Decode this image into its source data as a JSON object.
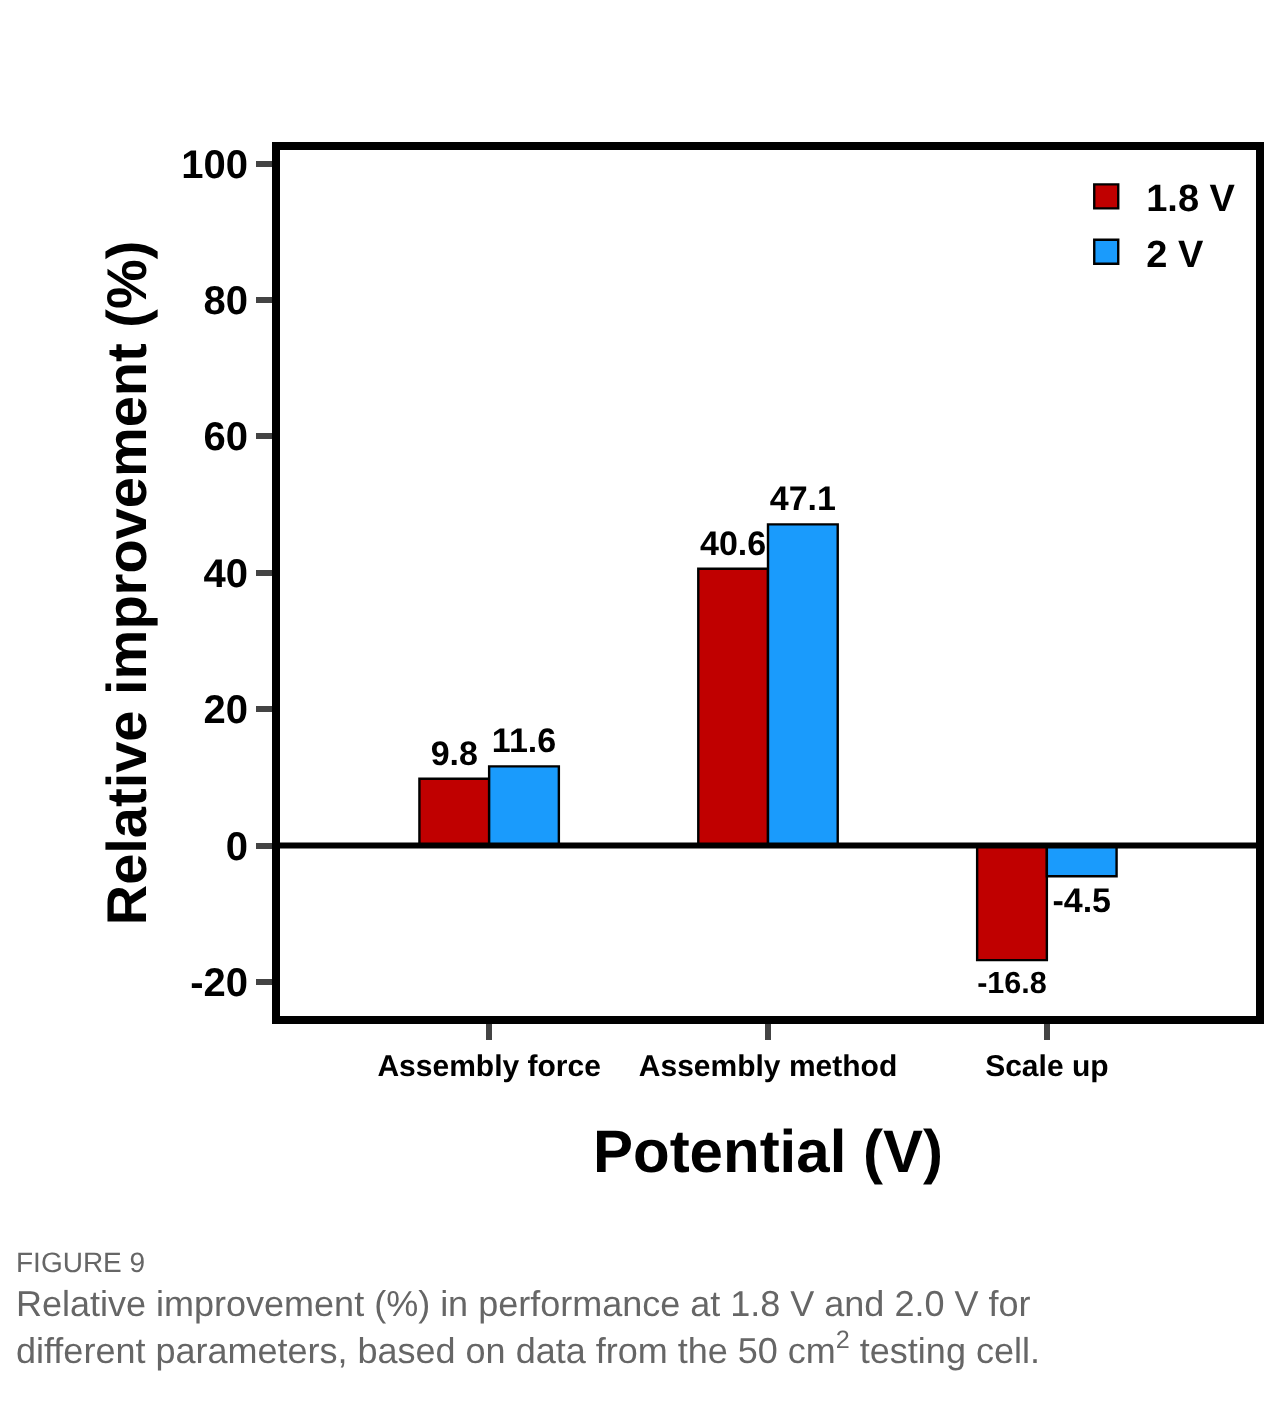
{
  "chart_data": {
    "type": "bar",
    "xlabel": "Potential (V)",
    "ylabel": "Relative improvement (%)",
    "categories": [
      "Assembly force",
      "Assembly method",
      "Scale up"
    ],
    "series": [
      {
        "name": "1.8 V",
        "color": "#c00000",
        "values": [
          9.8,
          40.6,
          -16.8
        ]
      },
      {
        "name": "2 V",
        "color": "#1a9bfc",
        "values": [
          11.6,
          47.1,
          -4.5
        ]
      }
    ],
    "ylim": [
      -25,
      102
    ],
    "yticks": [
      -20,
      0,
      20,
      40,
      60,
      80,
      100
    ],
    "ref_lines": [
      {
        "axis": "y",
        "value": 0,
        "color": "#000000"
      }
    ],
    "data_labels": true,
    "legend": "top right",
    "annotations": [
      "FIGURE 9",
      "Relative improvement (%) in performance at 1.8 V and 2.0 V for different parameters, based on data from the 50 cm$^{2}$ testing cell."
    ]
  }
}
